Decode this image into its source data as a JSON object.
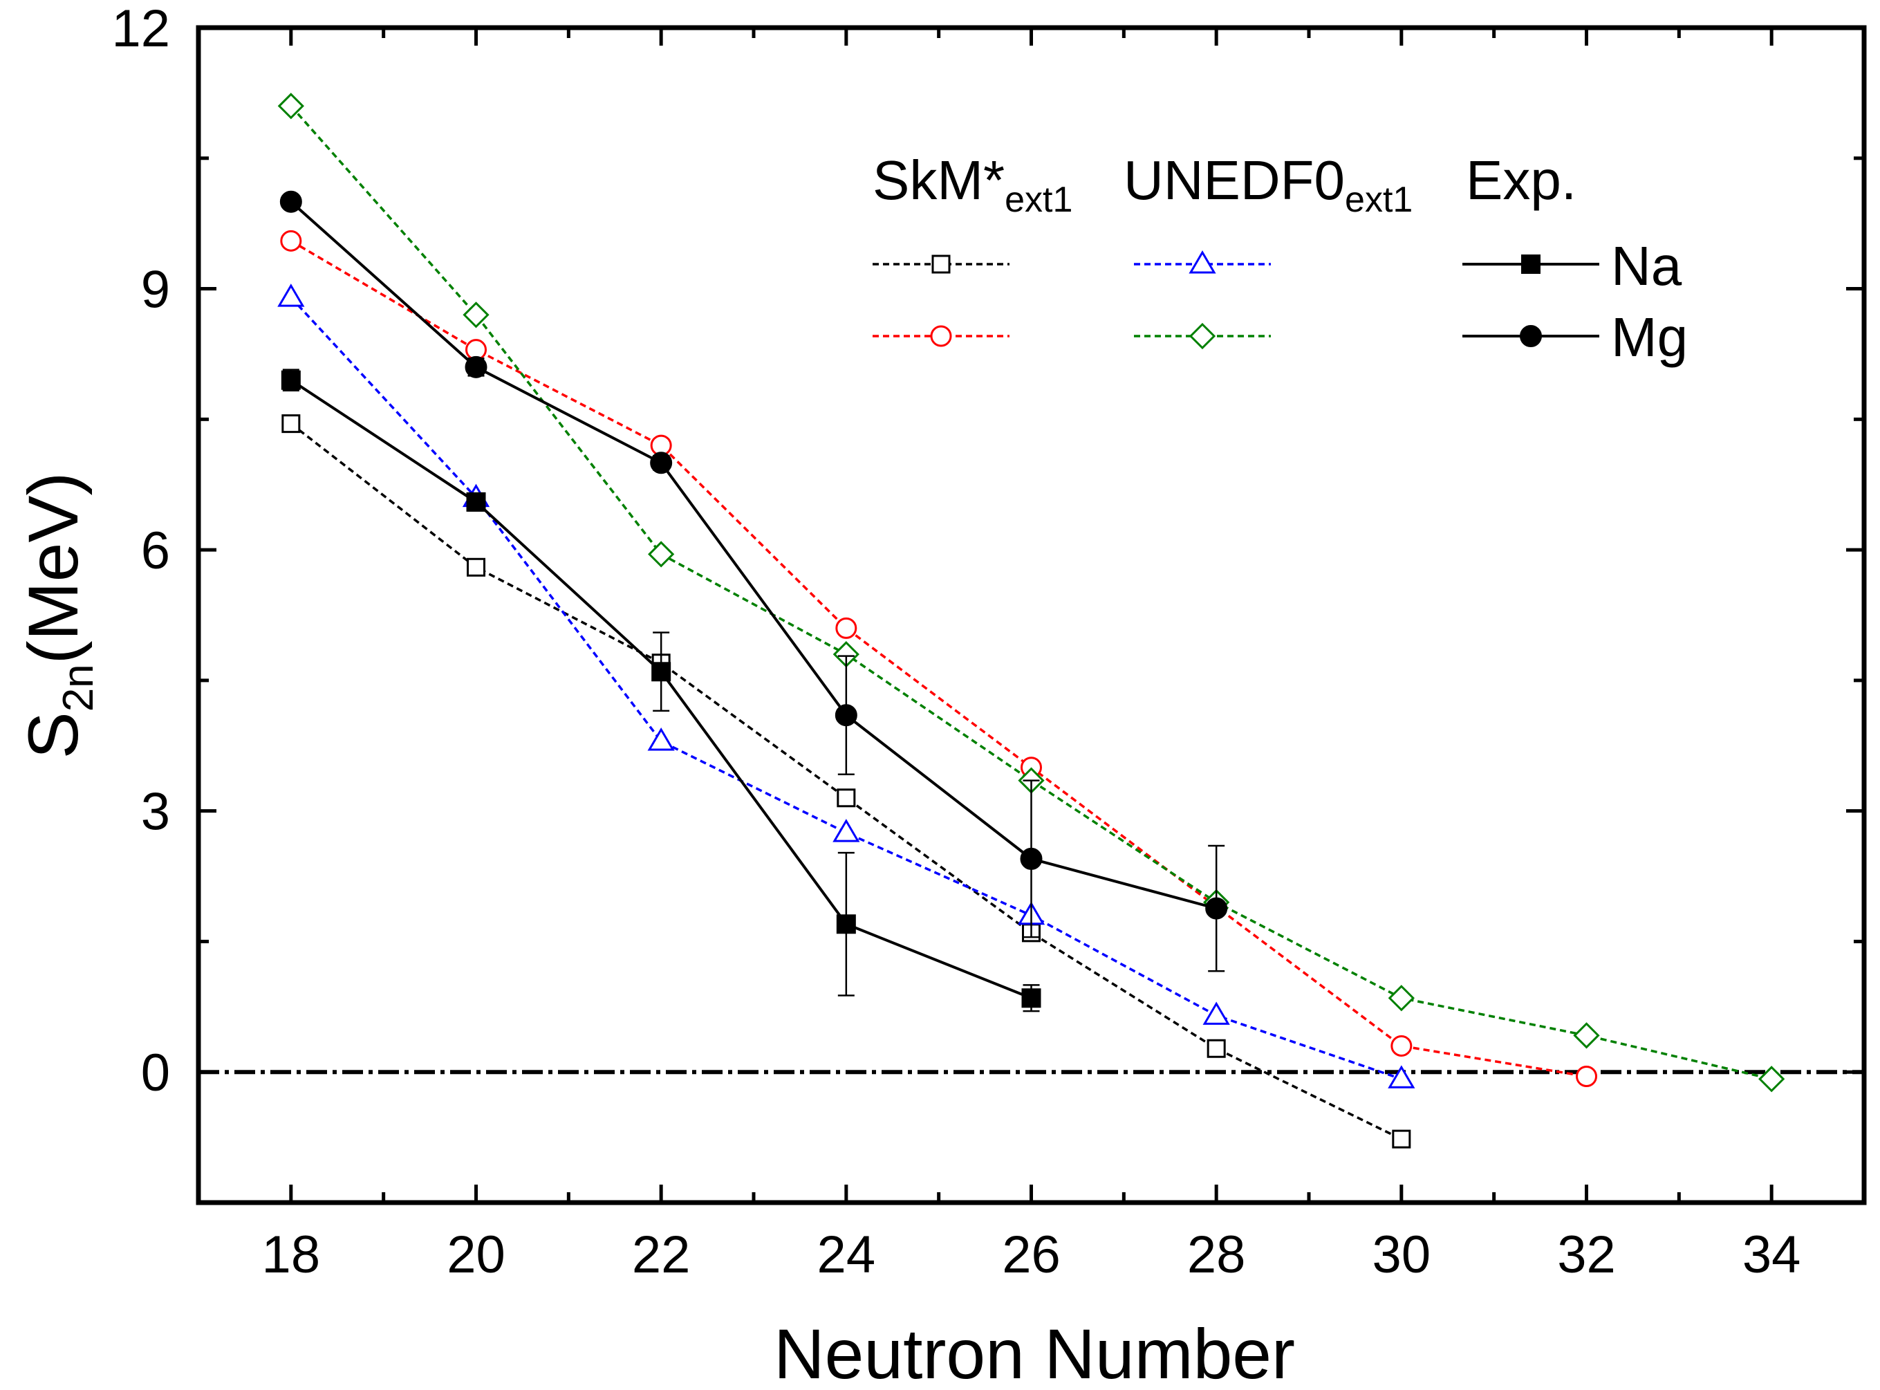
{
  "chart_data": {
    "type": "line",
    "xlabel": "Neutron Number",
    "ylabel": {
      "main": "S",
      "sub": "2n",
      "suffix": "(MeV)"
    },
    "xlim": [
      17,
      35
    ],
    "ylim": [
      -1.5,
      12
    ],
    "xticks": [
      18,
      20,
      22,
      24,
      26,
      28,
      30,
      32,
      34
    ],
    "xtick_labels": [
      "18",
      "20",
      "22",
      "24",
      "26",
      "28",
      "30",
      "32",
      "34"
    ],
    "yticks": [
      0,
      3,
      6,
      9,
      12
    ],
    "ytick_labels": [
      "0",
      "3",
      "6",
      "9",
      "12"
    ],
    "reference_line": {
      "y": 0,
      "style": "dash-dot"
    },
    "legend": {
      "placement": "top-right",
      "headers": [
        {
          "main": "SkM*",
          "sub": "ext1"
        },
        {
          "main": "UNEDF0",
          "sub": "ext1"
        },
        {
          "main": "Exp.",
          "sub": ""
        }
      ],
      "row_labels": [
        "Na",
        "Mg"
      ]
    },
    "series": [
      {
        "name": "SkM*ext1 Na",
        "color": "#000000",
        "marker": "open-square",
        "dashed": true,
        "x": [
          18,
          20,
          22,
          24,
          26,
          28,
          30
        ],
        "y": [
          7.45,
          5.8,
          4.7,
          3.15,
          1.6,
          0.27,
          -0.77
        ]
      },
      {
        "name": "SkM*ext1 Mg",
        "color": "#ff0000",
        "marker": "open-circle",
        "dashed": true,
        "x": [
          18,
          20,
          22,
          24,
          26,
          28,
          30,
          32
        ],
        "y": [
          9.55,
          8.3,
          7.2,
          5.1,
          3.5,
          1.9,
          0.3,
          -0.05
        ]
      },
      {
        "name": "UNEDF0ext1 Na",
        "color": "#0000ff",
        "marker": "open-triangle",
        "dashed": true,
        "x": [
          18,
          20,
          22,
          24,
          26,
          28,
          30
        ],
        "y": [
          8.9,
          6.6,
          3.8,
          2.75,
          1.8,
          0.65,
          -0.08
        ]
      },
      {
        "name": "UNEDF0ext1 Mg",
        "color": "#008000",
        "marker": "open-diamond",
        "dashed": true,
        "x": [
          18,
          20,
          22,
          24,
          26,
          28,
          30,
          32,
          34
        ],
        "y": [
          11.1,
          8.7,
          5.95,
          4.8,
          3.35,
          1.95,
          0.85,
          0.42,
          -0.08
        ]
      },
      {
        "name": "Exp. Na",
        "color": "#000000",
        "marker": "filled-square",
        "dashed": false,
        "x": [
          18,
          20,
          22,
          24,
          26
        ],
        "y": [
          7.95,
          6.55,
          4.6,
          1.7,
          0.85
        ],
        "err": [
          0.12,
          0.1,
          0.45,
          0.82,
          0.15
        ]
      },
      {
        "name": "Exp. Mg",
        "color": "#000000",
        "marker": "filled-circle",
        "dashed": false,
        "x": [
          18,
          20,
          22,
          24,
          26,
          28
        ],
        "y": [
          10.0,
          8.1,
          7.0,
          4.1,
          2.45,
          1.88
        ],
        "err": [
          0.05,
          0.1,
          0.08,
          0.68,
          0.9,
          0.72
        ]
      }
    ]
  }
}
